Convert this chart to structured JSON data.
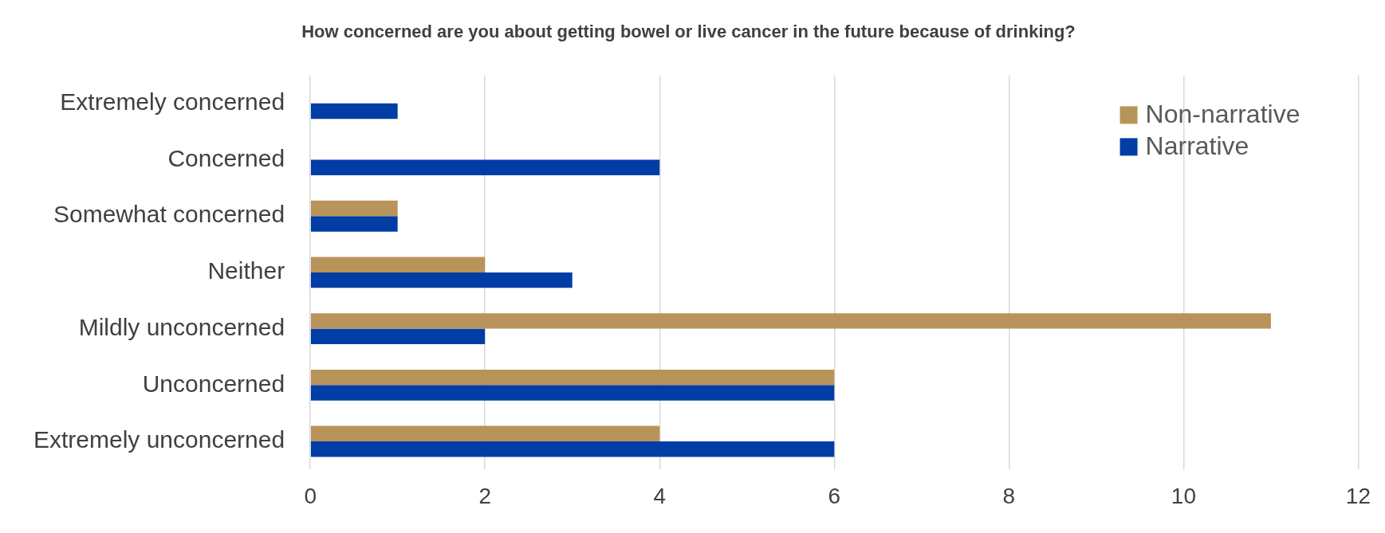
{
  "chart_data": {
    "type": "bar",
    "orientation": "horizontal",
    "title": "How concerned are you about getting bowel or live cancer in the future because of drinking?",
    "categories": [
      "Extremely concerned",
      "Concerned",
      "Somewhat concerned",
      "Neither",
      "Mildly unconcerned",
      "Unconcerned",
      "Extremely unconcerned"
    ],
    "series": [
      {
        "name": "Non-narrative",
        "color": "#b8935a",
        "values": [
          0,
          0,
          1,
          2,
          11,
          6,
          4
        ]
      },
      {
        "name": "Narrative",
        "color": "#003da5",
        "values": [
          1,
          4,
          1,
          3,
          2,
          6,
          6
        ]
      }
    ],
    "xlim": [
      0,
      12
    ],
    "xticks": [
      0,
      2,
      4,
      6,
      8,
      10,
      12
    ],
    "grid": "x",
    "legend": "top right"
  }
}
